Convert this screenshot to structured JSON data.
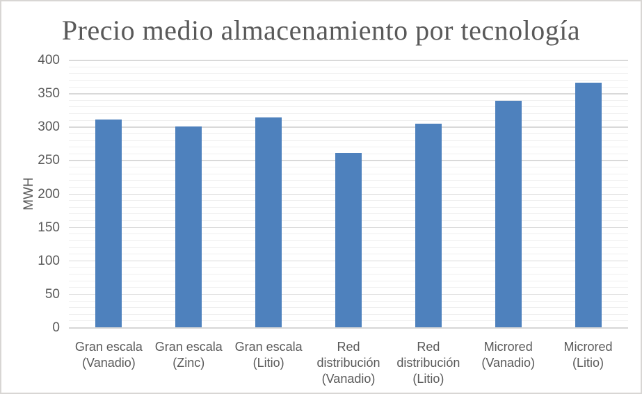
{
  "chart_data": {
    "type": "bar",
    "title": "Precio medio almacenamiento por tecnología",
    "categories": [
      "Gran escala (Vanadio)",
      "Gran escala (Zinc)",
      "Gran escala (Litio)",
      "Red distribución (Vanadio)",
      "Red distribución (Litio)",
      "Microred (Vanadio)",
      "Microred (Litio)"
    ],
    "values": [
      311,
      300,
      314,
      261,
      304,
      339,
      366
    ],
    "xlabel": "",
    "ylabel": "MWH",
    "ylim": [
      0,
      400
    ],
    "y_major_ticks": [
      0,
      50,
      100,
      150,
      200,
      250,
      300,
      350,
      400
    ],
    "y_minor_unit": 10,
    "y_major_unit": 50,
    "grid": "horizontal major+minor",
    "legend_position": "none",
    "bar_color": "#4e81bd",
    "text_color": "#595959",
    "major_gridline_color": "#d9d9d9",
    "minor_gridline_color": "#efefef"
  }
}
